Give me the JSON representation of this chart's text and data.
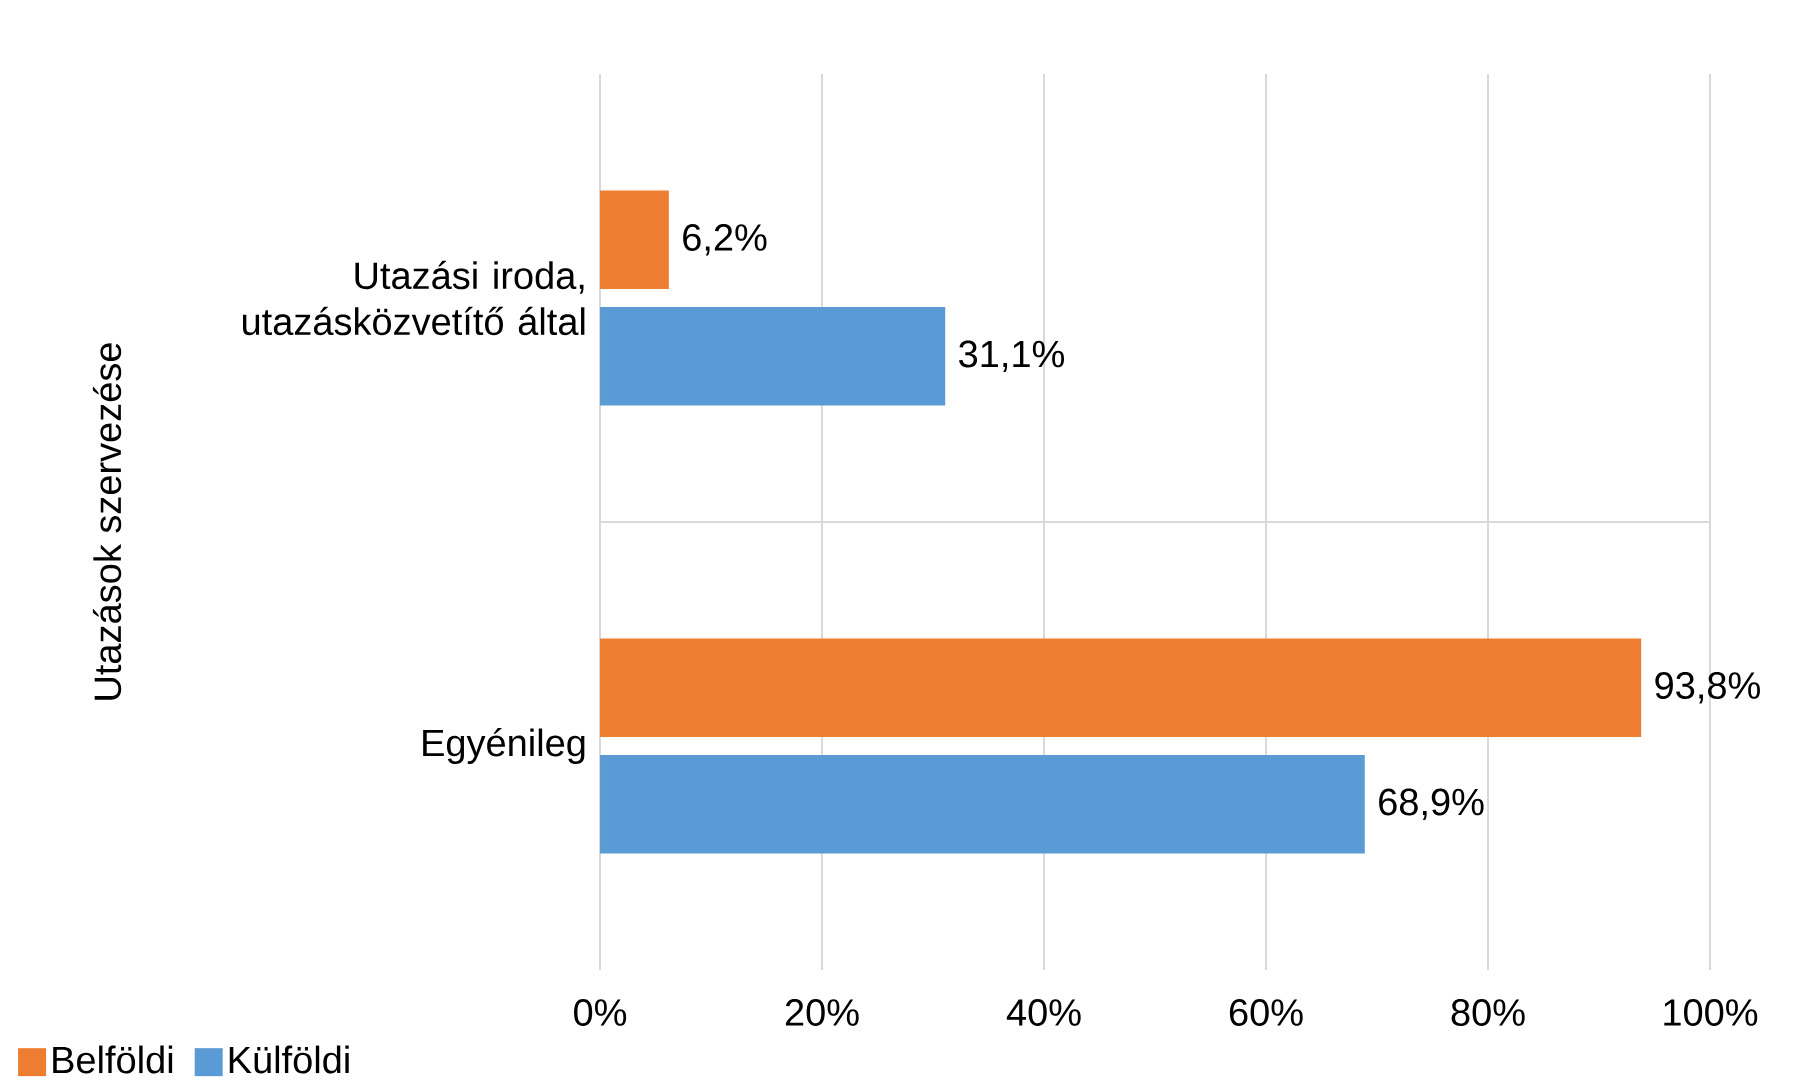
{
  "chart_data": {
    "type": "bar",
    "orientation": "horizontal",
    "ylabel": "Utazások szervezése",
    "categories": [
      "Utazási iroda, utazásközvetítő által",
      "Egyénileg"
    ],
    "series": [
      {
        "name": "Belföldi",
        "color": "#ed7d31",
        "values": [
          6.2,
          93.8
        ],
        "value_labels": [
          "6,2%",
          "93,8%"
        ]
      },
      {
        "name": "Külföldi",
        "color": "#5b9bd5",
        "values": [
          31.1,
          68.9
        ],
        "value_labels": [
          "31,1%",
          "68,9%"
        ]
      }
    ],
    "xlim": [
      0,
      100
    ],
    "xticks": [
      {
        "value": 0,
        "label": "0%"
      },
      {
        "value": 20,
        "label": "20%"
      },
      {
        "value": 40,
        "label": "40%"
      },
      {
        "value": 60,
        "label": "60%"
      },
      {
        "value": 80,
        "label": "80%"
      },
      {
        "value": 100,
        "label": "100%"
      }
    ],
    "grid": "x",
    "legend": "bottom left"
  }
}
